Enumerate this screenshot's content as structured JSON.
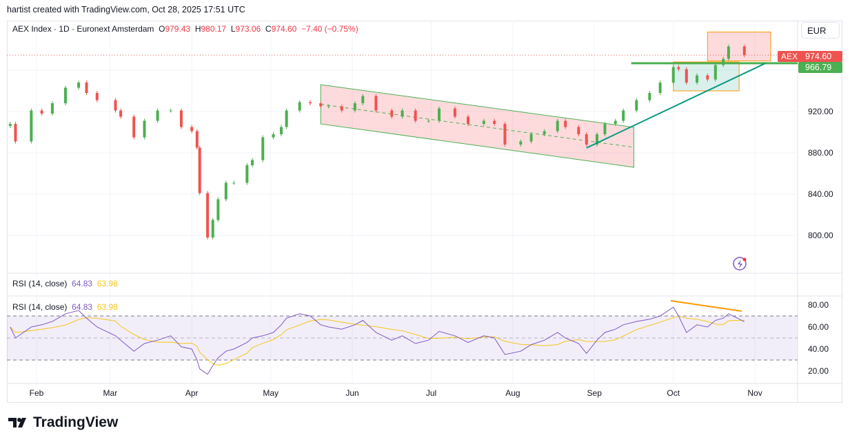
{
  "credit": "hartist created with TradingView.com, Oct 28, 2025 17:51 UTC",
  "symbol": {
    "title": "AEX Index · 1D · Euronext Amsterdam",
    "o_label": "O",
    "o": "979.43",
    "h_label": "H",
    "h": "980.17",
    "l_label": "L",
    "l": "973.06",
    "c_label": "C",
    "c": "974.60",
    "change": "−7.40 (−0.75%)"
  },
  "currency": "EUR",
  "price_tags": {
    "symbol_tag": "AEX",
    "last": "974.60",
    "line": "966.79"
  },
  "rsi": {
    "label": "RSI (14, close)",
    "value": "64.83",
    "ma": "63.98"
  },
  "brand": "TradingView",
  "colors": {
    "up": "#4caf50",
    "down": "#ef5350",
    "rsi": "#7e57c2",
    "rsi_ma": "#f5c518",
    "trend": "#089981",
    "hline": "#4caf50",
    "channel": "#f8bbd0",
    "box_orange": "#ff9800"
  },
  "chart_data": [
    {
      "type": "candlestick",
      "title": "AEX Index · 1D · Euronext Amsterdam",
      "y_ticks": [
        "800.00",
        "840.00",
        "880.00",
        "920.00"
      ],
      "ylim": [
        780,
        1000
      ],
      "x_ticks": [
        "Feb",
        "Mar",
        "Apr",
        "May",
        "Jun",
        "Jul",
        "Aug",
        "Sep",
        "Oct",
        "Nov"
      ],
      "dates": [
        "2025-01-22",
        "2025-01-24",
        "2025-01-30",
        "2025-02-03",
        "2025-02-07",
        "2025-02-12",
        "2025-02-17",
        "2025-02-20",
        "2025-02-24",
        "2025-03-03",
        "2025-03-05",
        "2025-03-10",
        "2025-03-14",
        "2025-03-19",
        "2025-03-24",
        "2025-03-28",
        "2025-04-01",
        "2025-04-03",
        "2025-04-04",
        "2025-04-07",
        "2025-04-09",
        "2025-04-11",
        "2025-04-14",
        "2025-04-17",
        "2025-04-22",
        "2025-04-24",
        "2025-04-28",
        "2025-05-02",
        "2025-05-05",
        "2025-05-07",
        "2025-05-12",
        "2025-05-16",
        "2025-05-20",
        "2025-05-23",
        "2025-05-28",
        "2025-06-02",
        "2025-06-05",
        "2025-06-10",
        "2025-06-16",
        "2025-06-20",
        "2025-06-25",
        "2025-06-30",
        "2025-07-04",
        "2025-07-10",
        "2025-07-15",
        "2025-07-21",
        "2025-07-25",
        "2025-07-29",
        "2025-08-04",
        "2025-08-08",
        "2025-08-13",
        "2025-08-18",
        "2025-08-21",
        "2025-08-26",
        "2025-08-29",
        "2025-09-02",
        "2025-09-05",
        "2025-09-09",
        "2025-09-12",
        "2025-09-17",
        "2025-09-22",
        "2025-09-26",
        "2025-10-01",
        "2025-10-03",
        "2025-10-06",
        "2025-10-10",
        "2025-10-14",
        "2025-10-17",
        "2025-10-20",
        "2025-10-22",
        "2025-10-28"
      ],
      "close": [
        908,
        891,
        921,
        918,
        928,
        943,
        948,
        938,
        931,
        921,
        915,
        895,
        911,
        921,
        921,
        905,
        901,
        885,
        841,
        798,
        815,
        835,
        851,
        851,
        868,
        873,
        895,
        898,
        905,
        921,
        929,
        928,
        925,
        925,
        921,
        928,
        935,
        921,
        915,
        921,
        911,
        911,
        923,
        915,
        908,
        911,
        908,
        888,
        891,
        898,
        901,
        911,
        905,
        898,
        888,
        898,
        908,
        911,
        921,
        931,
        938,
        948,
        963,
        961,
        948,
        955,
        951,
        965,
        971,
        983,
        974.6
      ],
      "drawings": {
        "channel": {
          "start": "2025-05-20",
          "end": "2025-09-16",
          "top": [
            946,
            904.7
          ],
          "bottom": [
            908,
            866
          ]
        },
        "trendline": {
          "start": [
            "2025-08-29",
            884.7
          ],
          "end": [
            "2025-11-05",
            966.7
          ]
        },
        "hline": {
          "start": "2025-09-15",
          "price": 966.79
        },
        "box_red": {
          "start": "2025-10-14",
          "end": "2025-11-07",
          "top": 997,
          "bottom": 969
        },
        "box_green": {
          "start": "2025-10-01",
          "end": "2025-10-26",
          "top": 968,
          "bottom": 940
        }
      }
    },
    {
      "type": "line",
      "title": "RSI (14, close)",
      "y_ticks": [
        "20.00",
        "40.00",
        "60.00",
        "80.00"
      ],
      "ylim": [
        10,
        90
      ],
      "bands": [
        30,
        50,
        70
      ],
      "rsi": [
        60,
        50,
        60,
        62,
        65,
        72,
        75,
        68,
        60,
        52,
        48,
        38,
        45,
        48,
        52,
        42,
        40,
        30,
        22,
        17,
        25,
        32,
        38,
        40,
        46,
        50,
        52,
        55,
        62,
        68,
        72,
        70,
        62,
        60,
        58,
        62,
        66,
        55,
        48,
        52,
        45,
        48,
        56,
        52,
        46,
        52,
        50,
        35,
        38,
        44,
        48,
        55,
        50,
        45,
        36,
        48,
        55,
        58,
        62,
        65,
        67,
        70,
        78,
        70,
        55,
        62,
        60,
        66,
        68,
        72,
        64.83
      ],
      "divergence_line": {
        "start": [
          "2025-09-30",
          83.8
        ],
        "end": [
          "2025-10-27",
          74.4
        ]
      }
    }
  ]
}
